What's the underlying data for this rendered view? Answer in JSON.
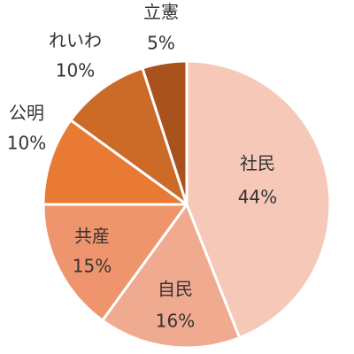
{
  "chart_data": {
    "type": "pie",
    "title": "",
    "slices": [
      {
        "label": "社民",
        "value": 44,
        "display": "44%",
        "color": "#F5C8B8"
      },
      {
        "label": "自民",
        "value": 16,
        "display": "16%",
        "color": "#F0AA90"
      },
      {
        "label": "共産",
        "value": 15,
        "display": "15%",
        "color": "#EE956E"
      },
      {
        "label": "公明",
        "value": 10,
        "display": "10%",
        "color": "#E87A34"
      },
      {
        "label": "れいわ",
        "value": 10,
        "display": "10%",
        "color": "#CC6A28"
      },
      {
        "label": "立憲",
        "value": 5,
        "display": "5%",
        "color": "#A9521E"
      }
    ]
  }
}
